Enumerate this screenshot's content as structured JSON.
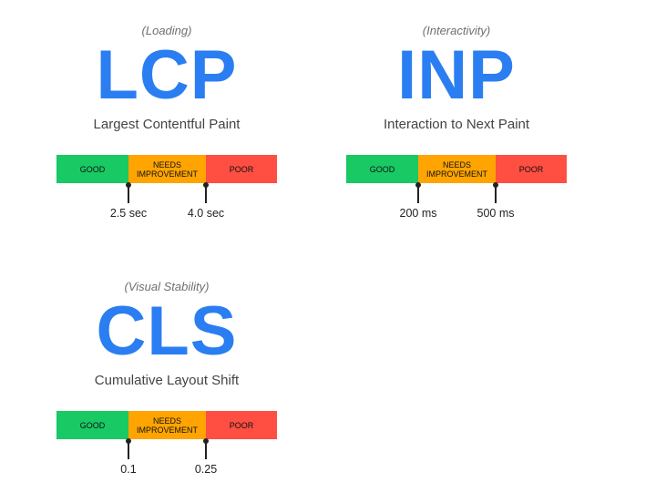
{
  "metrics": [
    {
      "category": "(Loading)",
      "acronym": "LCP",
      "name": "Largest Contentful Paint",
      "bands": {
        "good": "GOOD",
        "needs": "NEEDS IMPROVEMENT",
        "poor": "POOR"
      },
      "thresholds": [
        "2.5 sec",
        "4.0 sec"
      ]
    },
    {
      "category": "(Interactivity)",
      "acronym": "INP",
      "name": "Interaction to Next Paint",
      "bands": {
        "good": "GOOD",
        "needs": "NEEDS IMPROVEMENT",
        "poor": "POOR"
      },
      "thresholds": [
        "200 ms",
        "500 ms"
      ]
    },
    {
      "category": "(Visual Stability)",
      "acronym": "CLS",
      "name": "Cumulative Layout Shift",
      "bands": {
        "good": "GOOD",
        "needs": "NEEDS IMPROVEMENT",
        "poor": "POOR"
      },
      "thresholds": [
        "0.1",
        "0.25"
      ]
    }
  ],
  "colors": {
    "accent": "#2a7ef1",
    "good": "#18c964",
    "needs_improvement": "#ffa400",
    "poor": "#ff4e42"
  }
}
